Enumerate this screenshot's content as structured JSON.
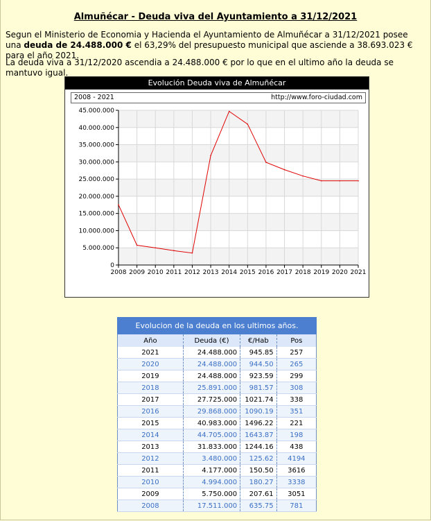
{
  "page": {
    "title": "Almuñécar - Deuda viva del Ayuntamiento a 31/12/2021",
    "p1_a": "Segun el Ministerio de Economia y Hacienda el Ayuntamiento de Almuñécar a 31/12/2021 posee una ",
    "p1_b": "deuda de 24.488.000 €",
    "p1_c": " el 63,29% del presupuesto municipal que asciende a 38.693.023 € para el año 2021.",
    "p2": "La deuda viva a 31/12/2020 ascendia a 24.488.000 € por lo que en el ultimo año la deuda se mantuvo igual."
  },
  "chart_data": {
    "type": "line",
    "title": "Evolución Deuda viva de Almuñécar",
    "subtitle_left": "2008 - 2021",
    "subtitle_right": "http://www.foro-ciudad.com",
    "x": [
      2008,
      2009,
      2010,
      2011,
      2012,
      2013,
      2014,
      2015,
      2016,
      2017,
      2018,
      2019,
      2020,
      2021
    ],
    "values": [
      17511000,
      5750000,
      4994000,
      4177000,
      3480000,
      31833000,
      44705000,
      40983000,
      29868000,
      27725000,
      25891000,
      24488000,
      24488000,
      24488000
    ],
    "ylim": [
      0,
      45000000
    ],
    "yticks": [
      0,
      5000000,
      10000000,
      15000000,
      20000000,
      25000000,
      30000000,
      35000000,
      40000000,
      45000000
    ],
    "ytick_labels": [
      "0",
      "5.000.000",
      "10.000.000",
      "15.000.000",
      "20.000.000",
      "25.000.000",
      "30.000.000",
      "35.000.000",
      "40.000.000",
      "45.000.000"
    ],
    "grid": true,
    "line_color": "#e00000"
  },
  "table": {
    "caption": "Evolucion de la deuda en los ultimos años.",
    "headers": [
      "Año",
      "Deuda (€)",
      "€/Hab",
      "Pos"
    ],
    "rows": [
      [
        "2021",
        "24.488.000",
        "945.85",
        "257"
      ],
      [
        "2020",
        "24.488.000",
        "944.50",
        "265"
      ],
      [
        "2019",
        "24.488.000",
        "923.59",
        "299"
      ],
      [
        "2018",
        "25.891.000",
        "981.57",
        "308"
      ],
      [
        "2017",
        "27.725.000",
        "1021.74",
        "338"
      ],
      [
        "2016",
        "29.868.000",
        "1090.19",
        "351"
      ],
      [
        "2015",
        "40.983.000",
        "1496.22",
        "221"
      ],
      [
        "2014",
        "44.705.000",
        "1643.87",
        "198"
      ],
      [
        "2013",
        "31.833.000",
        "1244.16",
        "438"
      ],
      [
        "2012",
        "3.480.000",
        "125.62",
        "4194"
      ],
      [
        "2011",
        "4.177.000",
        "150.50",
        "3616"
      ],
      [
        "2010",
        "4.994.000",
        "180.27",
        "3338"
      ],
      [
        "2009",
        "5.750.000",
        "207.61",
        "3051"
      ],
      [
        "2008",
        "17.511.000",
        "635.75",
        "781"
      ]
    ]
  }
}
